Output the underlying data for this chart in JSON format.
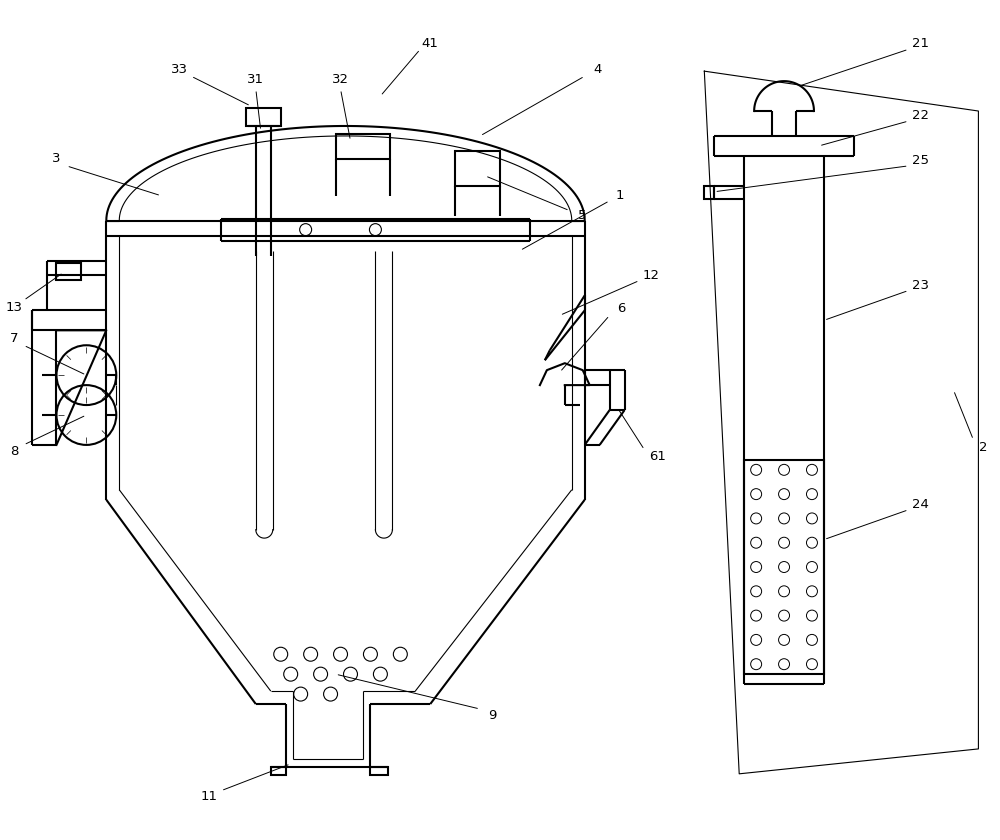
{
  "bg_color": "#ffffff",
  "line_color": "#000000",
  "line_width": 1.5,
  "thin_line": 0.8,
  "annotation_color": "#333333",
  "figsize": [
    10,
    8.4
  ],
  "dpi": 100
}
